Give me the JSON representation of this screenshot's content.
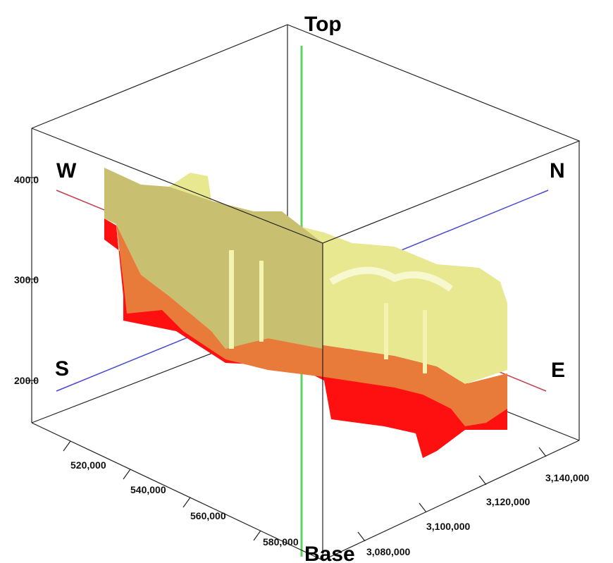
{
  "directions": {
    "top": "Top",
    "base": "Base",
    "west": "W",
    "north": "N",
    "south": "S",
    "east": "E"
  },
  "vertical_axis": {
    "ticks": [
      "400.0",
      "300.0",
      "200.0"
    ]
  },
  "easting_axis": {
    "ticks": [
      "520,000",
      "540,000",
      "560,000",
      "580,000"
    ]
  },
  "northing_axis": {
    "ticks": [
      "3,080,000",
      "3,100,000",
      "3,120,000",
      "3,140,000"
    ]
  }
}
